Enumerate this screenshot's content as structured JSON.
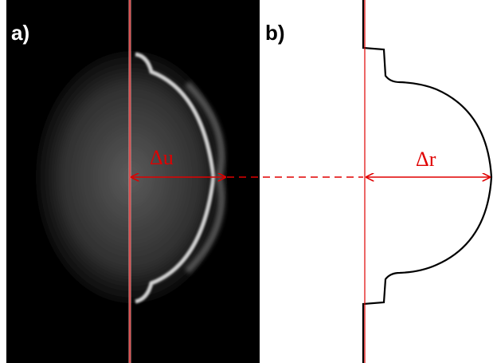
{
  "panels": [
    {
      "label": "a)",
      "measure": "Δu"
    },
    {
      "label": "b)",
      "measure": "Δr"
    }
  ]
}
